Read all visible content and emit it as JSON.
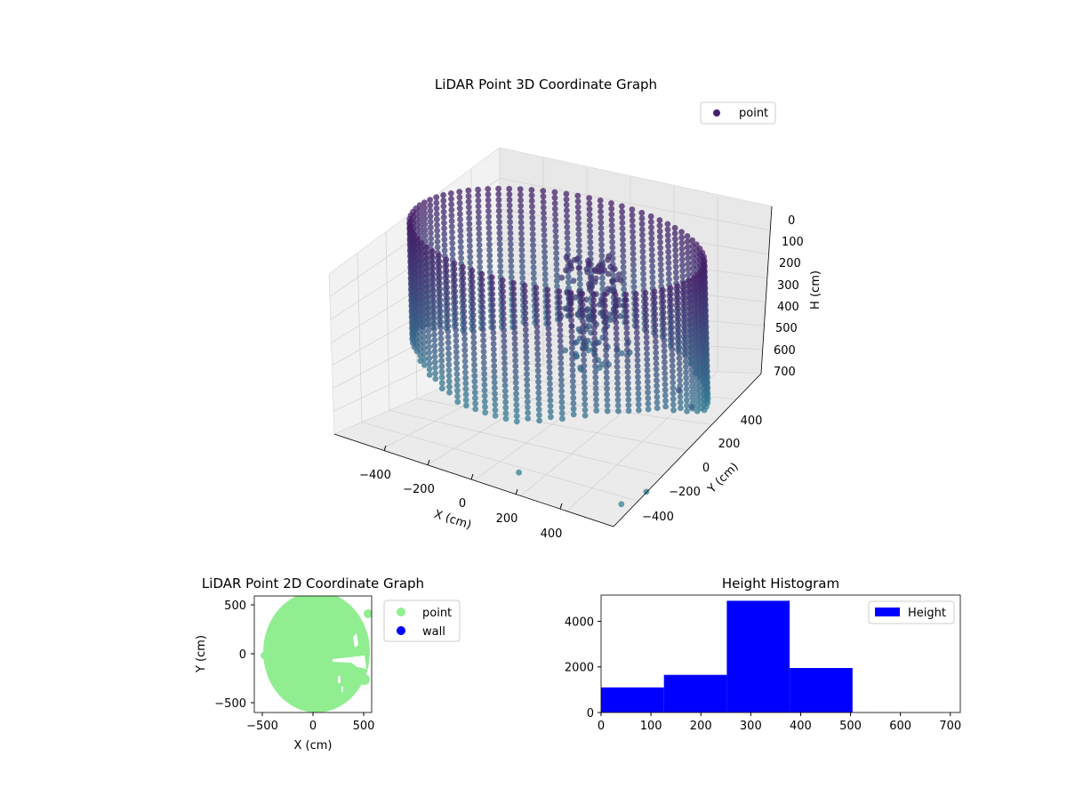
{
  "chart_data": [
    {
      "type": "scatter",
      "projection": "3d",
      "title": "LiDAR Point 3D Coordinate Graph",
      "xlabel": "X (cm)",
      "ylabel": "Y (cm)",
      "zlabel": "H (cm)",
      "xticks": [
        "−400",
        "−200",
        "0",
        "200",
        "400"
      ],
      "yticks": [
        "−400",
        "−200",
        "0",
        "200",
        "400"
      ],
      "zticks": [
        "0",
        "100",
        "200",
        "300",
        "400",
        "500",
        "600",
        "700"
      ],
      "xlim": [
        -550,
        550
      ],
      "ylim": [
        -550,
        550
      ],
      "zlim": [
        0,
        700
      ],
      "zinverted": true,
      "legend": [
        "point"
      ],
      "legend_position": "top-right",
      "colormap": "viridis (purple to teal by height)",
      "description_of_data": "cylindrical wall of points of radius about 500 cm spanning heights 0-500 cm, with a cluster of points near the center",
      "series": [
        {
          "name": "point",
          "color": "#46226e",
          "samples": [
            {
              "x": -500,
              "y": 0,
              "h": 50
            },
            {
              "x": -500,
              "y": 0,
              "h": 500
            },
            {
              "x": 0,
              "y": 500,
              "h": 50
            },
            {
              "x": 0,
              "y": 500,
              "h": 500
            },
            {
              "x": 500,
              "y": 0,
              "h": 50
            },
            {
              "x": 500,
              "y": 0,
              "h": 500
            },
            {
              "x": 0,
              "y": -500,
              "h": 50
            },
            {
              "x": 0,
              "y": -500,
              "h": 500
            },
            {
              "x": 50,
              "y": 100,
              "h": 150
            },
            {
              "x": 60,
              "y": 80,
              "h": 250
            },
            {
              "x": 80,
              "y": 120,
              "h": 320
            },
            {
              "x": 600,
              "y": -200,
              "h": 300
            }
          ]
        }
      ]
    },
    {
      "type": "scatter",
      "title": "LiDAR Point 2D Coordinate Graph",
      "xlabel": "X (cm)",
      "ylabel": "Y (cm)",
      "xticks": [
        "−500",
        "0",
        "500"
      ],
      "yticks": [
        "−500",
        "0",
        "500"
      ],
      "xlim": [
        -580,
        580
      ],
      "ylim": [
        -600,
        600
      ],
      "legend": [
        "point",
        "wall"
      ],
      "legend_position": "outside-right",
      "series": [
        {
          "name": "point",
          "color": "#90ee90",
          "shape": "filled disc of radius about 520 cm centred near (0, 0)"
        },
        {
          "name": "wall",
          "color": "#0000ff",
          "values": []
        }
      ]
    },
    {
      "type": "bar",
      "subtype": "histogram",
      "title": "Height Histogram",
      "xlabel": "",
      "ylabel": "",
      "xticks": [
        "0",
        "100",
        "200",
        "300",
        "400",
        "500",
        "600",
        "700"
      ],
      "yticks": [
        "0",
        "2000",
        "4000"
      ],
      "xlim": [
        0,
        720
      ],
      "ylim": [
        0,
        5150
      ],
      "legend": [
        "Height"
      ],
      "legend_position": "top-right",
      "bin_edges": [
        0,
        126,
        252,
        378,
        504,
        630,
        756
      ],
      "values": [
        1100,
        1650,
        4900,
        1950,
        0,
        0
      ],
      "color": "#0000ff"
    }
  ]
}
